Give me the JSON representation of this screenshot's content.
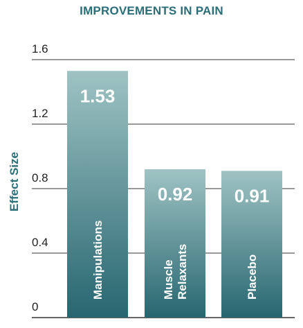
{
  "chart_data": {
    "type": "bar",
    "title": "IMPROVEMENTS IN PAIN",
    "ylabel": "Effect Size",
    "xlabel": "",
    "ylim": [
      0,
      1.6
    ],
    "yticks": [
      "0",
      "0.4",
      "0.8",
      "1.2",
      "1.6"
    ],
    "ytick_values": [
      0,
      0.4,
      0.8,
      1.2,
      1.6
    ],
    "categories": [
      [
        "Manipulations"
      ],
      [
        "Muscle",
        "Relaxants"
      ],
      [
        "Placebo"
      ]
    ],
    "values": [
      1.53,
      0.92,
      0.91
    ],
    "value_labels": [
      "1.53",
      "0.92",
      "0.91"
    ],
    "grid": true,
    "colors": {
      "bar_top": "#9fc3c3",
      "bar_bottom": "#276670",
      "title": "#2a6e77",
      "grid": "#333333"
    }
  }
}
